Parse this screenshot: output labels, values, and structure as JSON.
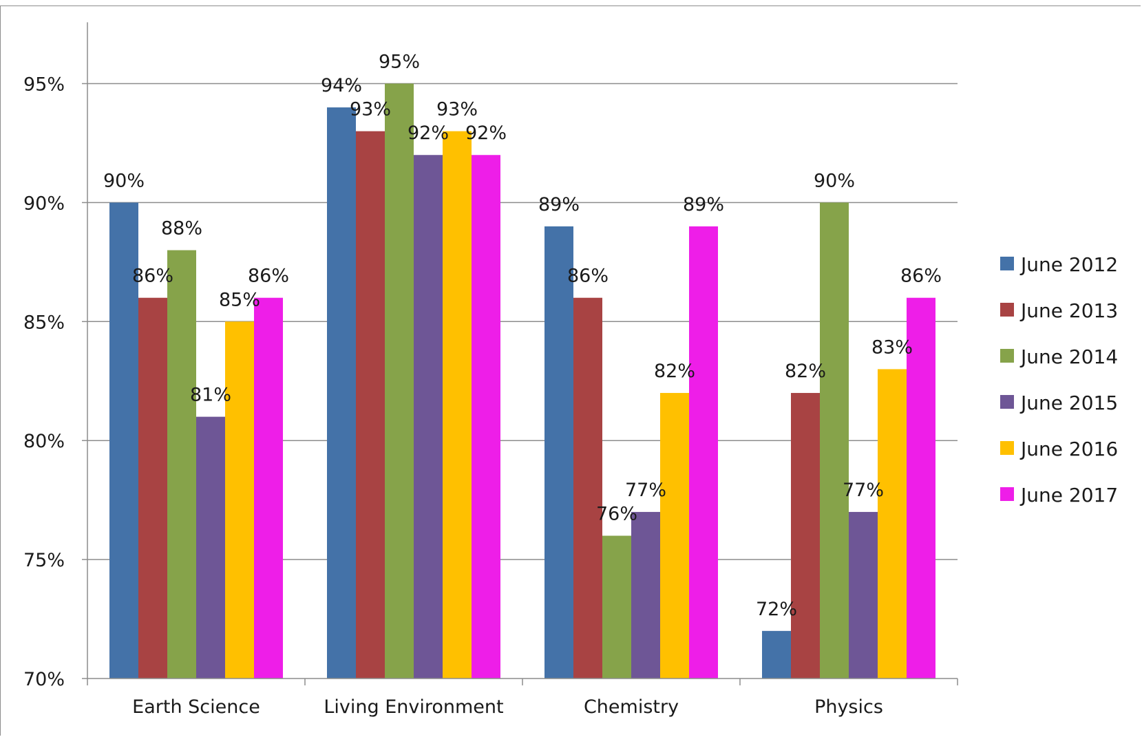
{
  "chart_data": {
    "type": "bar",
    "categories": [
      "Earth Science",
      "Living Environment",
      "Chemistry",
      "Physics"
    ],
    "series": [
      {
        "name": "June 2012",
        "color": "#4472a8",
        "values": [
          90,
          94,
          89,
          72
        ]
      },
      {
        "name": "June 2013",
        "color": "#a84343",
        "values": [
          86,
          93,
          86,
          82
        ]
      },
      {
        "name": "June 2014",
        "color": "#86a34a",
        "values": [
          88,
          95,
          76,
          90
        ]
      },
      {
        "name": "June 2015",
        "color": "#6e5696",
        "values": [
          81,
          92,
          77,
          77
        ]
      },
      {
        "name": "June 2016",
        "color": "#ffc000",
        "values": [
          85,
          93,
          82,
          83
        ]
      },
      {
        "name": "June 2017",
        "color": "#ee1ee8",
        "values": [
          86,
          92,
          89,
          86
        ]
      }
    ],
    "ylim": [
      70,
      97
    ],
    "yticks": [
      70,
      75,
      80,
      85,
      90,
      95
    ],
    "ytick_labels": [
      "70%",
      "75%",
      "80%",
      "85%",
      "90%",
      "95%"
    ],
    "value_suffix": "%",
    "grid": true,
    "legend": "right",
    "title": "",
    "xlabel": "",
    "ylabel": ""
  }
}
